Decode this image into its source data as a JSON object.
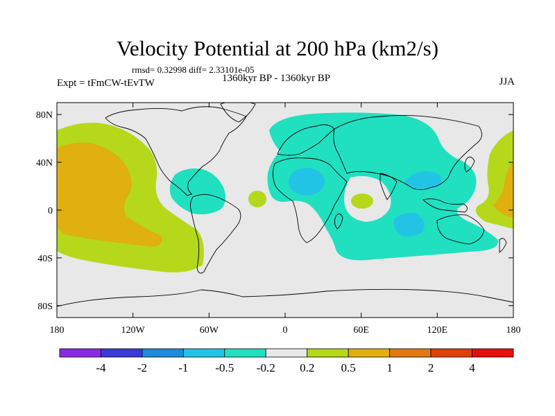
{
  "title": "Velocity Potential at 200 hPa (km2/s)",
  "stats_line": "rmsd= 0.32998 diff= 2.33101e-05",
  "left_label": "Expt = tFmCW-tEvTW",
  "center_label": "1360kyr BP - 1360kyr BP",
  "right_label": "JJA",
  "y_ticks": [
    {
      "label": "80N",
      "value": 80
    },
    {
      "label": "40N",
      "value": 40
    },
    {
      "label": "0",
      "value": 0
    },
    {
      "label": "40S",
      "value": -40
    },
    {
      "label": "80S",
      "value": -80
    }
  ],
  "x_ticks": [
    {
      "label": "180",
      "value": -180
    },
    {
      "label": "120W",
      "value": -120
    },
    {
      "label": "60W",
      "value": -60
    },
    {
      "label": "0",
      "value": 0
    },
    {
      "label": "60E",
      "value": 60
    },
    {
      "label": "120E",
      "value": 120
    },
    {
      "label": "180",
      "value": 180
    }
  ],
  "colorbar": {
    "colors": [
      "#8a2be2",
      "#3a3ad8",
      "#1c8bd9",
      "#22c4e6",
      "#20e0c0",
      "#e8e8e8",
      "#b5d81a",
      "#dfb00f",
      "#e07814",
      "#e0400a",
      "#e80e0e"
    ],
    "labels": [
      "-4",
      "-2",
      "-1",
      "-0.5",
      "-0.2",
      "0.2",
      "0.5",
      "1",
      "2",
      "4"
    ]
  },
  "map_colors": {
    "background": "#e8e8e8",
    "neg_02": "#20e0c0",
    "neg_05": "#22c4e6",
    "pos_02": "#b5d81a",
    "pos_05": "#dfb00f",
    "pos_1": "#e07814"
  }
}
